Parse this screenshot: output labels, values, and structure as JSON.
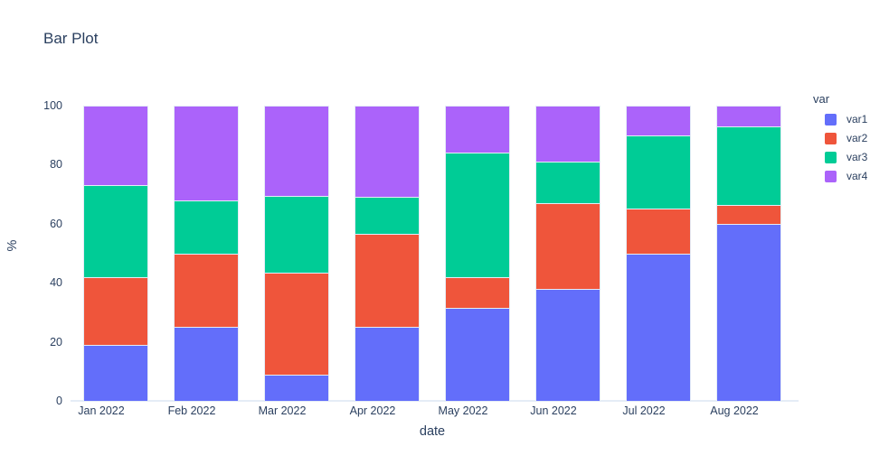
{
  "title": "Bar Plot",
  "chart_data": {
    "type": "bar",
    "stacked": true,
    "normalized_to_100": true,
    "title": "Bar Plot",
    "xlabel": "date",
    "ylabel": "%",
    "ylim": [
      0,
      100
    ],
    "yticks": [
      0,
      20,
      40,
      60,
      80,
      100
    ],
    "grid": false,
    "plot_bgcolor": "#ffffff",
    "axis_text_color": "#2a3f5f",
    "segment_outline_color": "#e5ecf6",
    "categories": [
      "Jan 2022",
      "Feb 2022",
      "Mar 2022",
      "Apr 2022",
      "May 2022",
      "Jun 2022",
      "Jul 2022",
      "Aug 2022"
    ],
    "series": [
      {
        "name": "var1",
        "color": "#636EFA",
        "values": [
          19,
          25,
          9,
          25,
          31.5,
          38,
          50,
          60
        ]
      },
      {
        "name": "var2",
        "color": "#EF553B",
        "values": [
          23,
          25,
          34.5,
          31.5,
          10.5,
          29,
          15,
          6.5
        ]
      },
      {
        "name": "var3",
        "color": "#00CC96",
        "values": [
          31,
          18,
          26,
          12.5,
          42,
          14,
          25,
          26.5
        ]
      },
      {
        "name": "var4",
        "color": "#AB63FA",
        "values": [
          27,
          32,
          30.5,
          31,
          16,
          19,
          10,
          7
        ]
      }
    ],
    "legend": {
      "title": "var",
      "position": "right",
      "entries": [
        "var1",
        "var2",
        "var3",
        "var4"
      ]
    }
  }
}
